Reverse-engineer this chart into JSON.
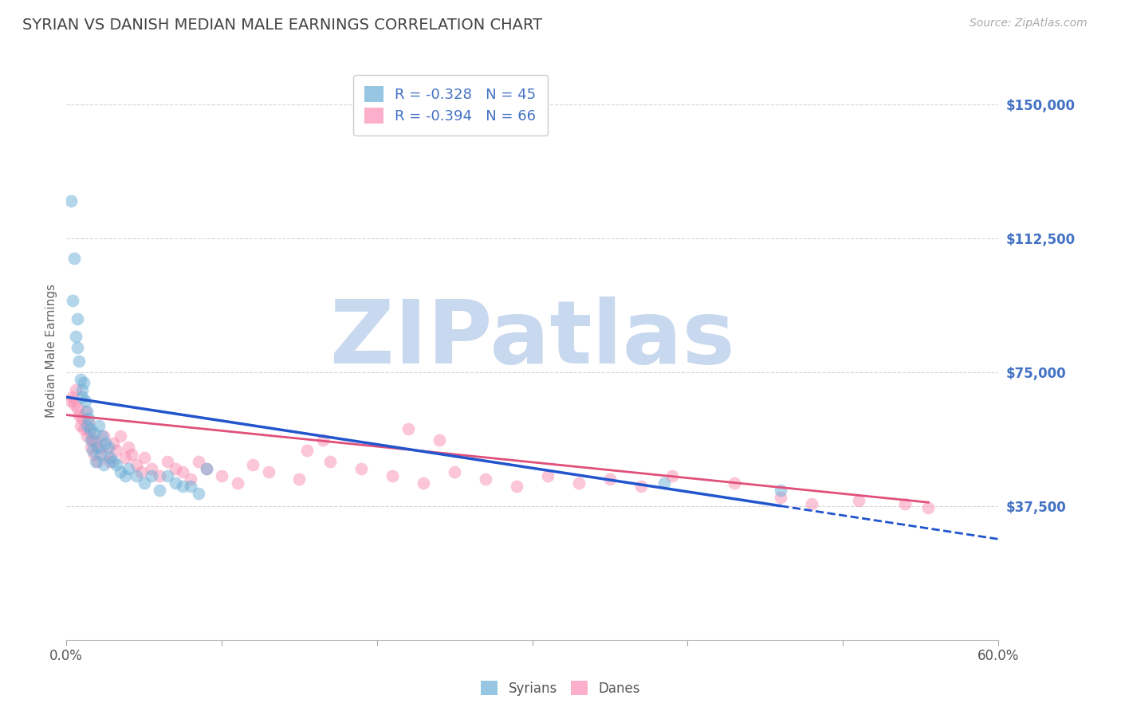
{
  "title": "SYRIAN VS DANISH MEDIAN MALE EARNINGS CORRELATION CHART",
  "source": "Source: ZipAtlas.com",
  "ylabel": "Median Male Earnings",
  "xmin": 0.0,
  "xmax": 0.6,
  "ymin": 0,
  "ymax": 162000,
  "yticks": [
    0,
    37500,
    75000,
    112500,
    150000
  ],
  "ytick_labels": [
    "",
    "$37,500",
    "$75,000",
    "$112,500",
    "$150,000"
  ],
  "xticks": [
    0.0,
    0.1,
    0.2,
    0.3,
    0.4,
    0.5,
    0.6
  ],
  "xtick_labels": [
    "0.0%",
    "",
    "",
    "",
    "",
    "",
    "60.0%"
  ],
  "legend_r1": "R = -0.328",
  "legend_n1": "N = 45",
  "legend_r2": "R = -0.394",
  "legend_n2": "N = 66",
  "color_syrian": "#6baed6",
  "color_dane": "#fa8eb4",
  "color_ytick": "#4472C4",
  "color_grid": "#cccccc",
  "watermark_text": "ZIPatlas",
  "watermark_color": "#c8d8ef",
  "syrians_x": [
    0.003,
    0.004,
    0.005,
    0.006,
    0.007,
    0.007,
    0.008,
    0.009,
    0.01,
    0.01,
    0.011,
    0.012,
    0.013,
    0.013,
    0.014,
    0.015,
    0.016,
    0.017,
    0.018,
    0.019,
    0.02,
    0.021,
    0.022,
    0.023,
    0.024,
    0.025,
    0.027,
    0.028,
    0.03,
    0.032,
    0.035,
    0.038,
    0.04,
    0.045,
    0.05,
    0.055,
    0.06,
    0.065,
    0.07,
    0.075,
    0.08,
    0.085,
    0.09,
    0.385,
    0.46
  ],
  "syrians_y": [
    123000,
    95000,
    107000,
    85000,
    90000,
    82000,
    78000,
    73000,
    70000,
    68000,
    72000,
    67000,
    64000,
    60000,
    62000,
    59000,
    56000,
    53000,
    58000,
    50000,
    54000,
    60000,
    52000,
    57000,
    49000,
    55000,
    54000,
    51000,
    50000,
    49000,
    47000,
    46000,
    48000,
    46000,
    44000,
    46000,
    42000,
    46000,
    44000,
    43000,
    43000,
    41000,
    48000,
    44000,
    42000
  ],
  "danes_x": [
    0.003,
    0.004,
    0.005,
    0.006,
    0.007,
    0.008,
    0.009,
    0.01,
    0.011,
    0.012,
    0.013,
    0.014,
    0.015,
    0.016,
    0.017,
    0.018,
    0.019,
    0.02,
    0.022,
    0.024,
    0.026,
    0.028,
    0.03,
    0.032,
    0.035,
    0.038,
    0.04,
    0.042,
    0.045,
    0.048,
    0.05,
    0.055,
    0.06,
    0.065,
    0.07,
    0.075,
    0.08,
    0.085,
    0.09,
    0.1,
    0.11,
    0.12,
    0.13,
    0.15,
    0.17,
    0.19,
    0.21,
    0.23,
    0.25,
    0.27,
    0.29,
    0.31,
    0.33,
    0.35,
    0.37,
    0.39,
    0.43,
    0.46,
    0.48,
    0.51,
    0.155,
    0.165,
    0.22,
    0.24,
    0.54,
    0.555
  ],
  "danes_y": [
    67000,
    68000,
    66000,
    70000,
    65000,
    63000,
    60000,
    62000,
    59000,
    64000,
    57000,
    61000,
    58000,
    54000,
    56000,
    52000,
    55000,
    50000,
    54000,
    57000,
    52000,
    50000,
    55000,
    53000,
    57000,
    51000,
    54000,
    52000,
    49000,
    47000,
    51000,
    48000,
    46000,
    50000,
    48000,
    47000,
    45000,
    50000,
    48000,
    46000,
    44000,
    49000,
    47000,
    45000,
    50000,
    48000,
    46000,
    44000,
    47000,
    45000,
    43000,
    46000,
    44000,
    45000,
    43000,
    46000,
    44000,
    40000,
    38000,
    39000,
    53000,
    56000,
    59000,
    56000,
    38000,
    37000
  ],
  "syrian_line_x0": 0.0,
  "syrian_line_y0": 68000,
  "syrian_line_x1": 0.46,
  "syrian_line_y1": 37500,
  "dane_line_x0": 0.0,
  "dane_line_y0": 63000,
  "dane_line_x1": 0.555,
  "dane_line_y1": 38500
}
